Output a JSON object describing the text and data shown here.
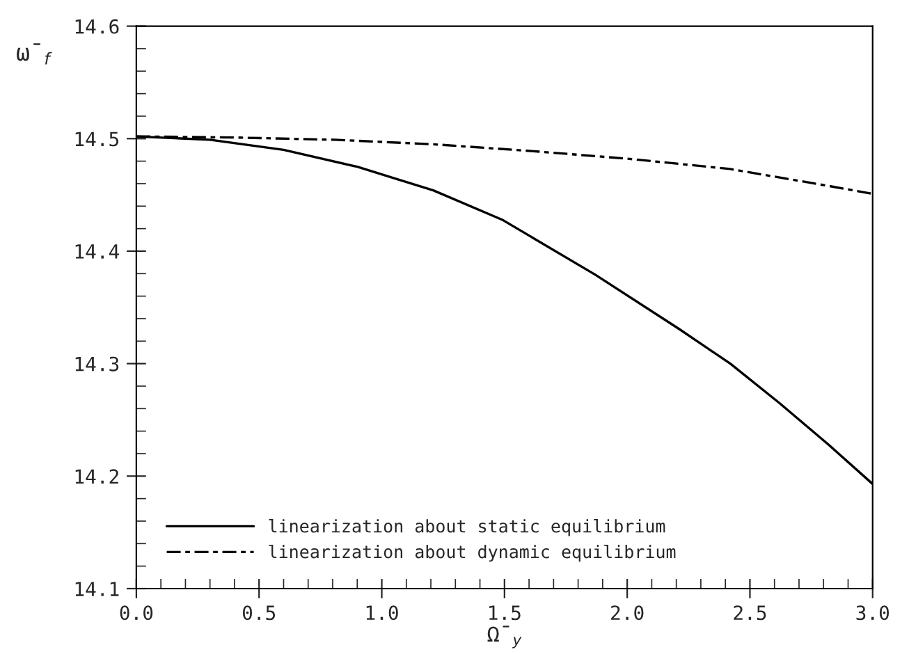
{
  "chart_data": {
    "type": "line",
    "xlabel": "Ω̄$_{y}$",
    "ylabel": "ω̄$_{f}$",
    "xlim": [
      0,
      3
    ],
    "ylim": [
      14.1,
      14.6
    ],
    "xticks": [
      {
        "value": 0,
        "label": "0.0"
      },
      {
        "value": 0.5,
        "label": "0.5"
      },
      {
        "value": 1,
        "label": "1.0"
      },
      {
        "value": 1.5,
        "label": "1.5"
      },
      {
        "value": 2,
        "label": "2.0"
      },
      {
        "value": 2.5,
        "label": "2.5"
      },
      {
        "value": 3,
        "label": "3.0"
      }
    ],
    "yticks": [
      14.1,
      14.2,
      14.3,
      14.4,
      14.5,
      14.6
    ],
    "legend": "bottom left",
    "grid": false,
    "series": [
      {
        "name": "linearization about static equilibrium",
        "color": "#000000",
        "line_style": "solid",
        "x": [
          0,
          0.3,
          0.6,
          0.9,
          1.21,
          1.49,
          1.87,
          2.21,
          2.42,
          2.62,
          2.82,
          3.0
        ],
        "values": [
          14.502,
          14.499,
          14.49,
          14.475,
          14.454,
          14.428,
          14.379,
          14.331,
          14.3,
          14.265,
          14.228,
          14.193
        ]
      },
      {
        "name": "linearization about dynamic equilibrium",
        "color": "#000000",
        "line_style": "dashed",
        "x": [
          0,
          0.4,
          0.81,
          1.21,
          1.61,
          2.01,
          2.42,
          2.82,
          3.0
        ],
        "values": [
          14.502,
          14.501,
          14.499,
          14.495,
          14.489,
          14.482,
          14.473,
          14.458,
          14.451
        ]
      }
    ]
  }
}
